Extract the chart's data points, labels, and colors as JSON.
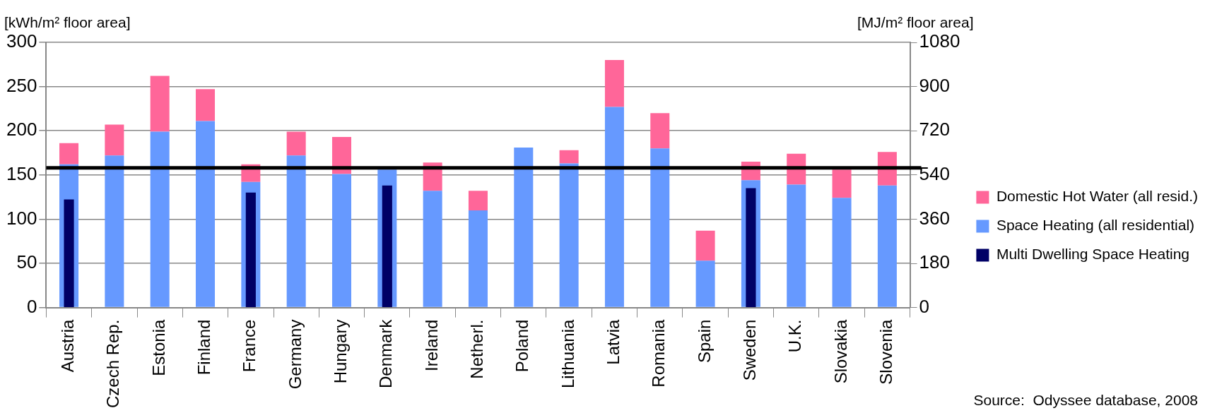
{
  "chart_data": {
    "type": "bar",
    "stacked": true,
    "categories": [
      "Austria",
      "Czech Rep.",
      "Estonia",
      "Finland",
      "France",
      "Germany",
      "Hungary",
      "Denmark",
      "Ireland",
      "Netherl.",
      "Poland",
      "Lithuania",
      "Latvia",
      "Romania",
      "Spain",
      "Sweden",
      "U.K.",
      "Slovakia",
      "Slovenia"
    ],
    "series": [
      {
        "name": "Space Heating (all residential)",
        "color": "#6699ff",
        "values": [
          162,
          172,
          199,
          211,
          142,
          172,
          151,
          156,
          132,
          110,
          181,
          163,
          227,
          180,
          53,
          144,
          139,
          124,
          138
        ]
      },
      {
        "name": "Domestic Hot Water (all resid.)",
        "color": "#ff6699",
        "values": [
          24,
          35,
          63,
          36,
          20,
          27,
          42,
          null,
          32,
          22,
          null,
          15,
          53,
          40,
          34,
          21,
          35,
          32,
          38
        ]
      },
      {
        "name": "Multi Dwelling Space Heating",
        "color": "#000066",
        "axis": "y2",
        "values": [
          440,
          null,
          null,
          null,
          468,
          null,
          null,
          497,
          null,
          null,
          null,
          null,
          null,
          null,
          null,
          486,
          null,
          null,
          null
        ]
      }
    ],
    "ylabel": "[kWh/m² floor area]",
    "y2label": "[MJ/m² floor area]",
    "ylim": [
      0,
      300
    ],
    "yticks": [
      0,
      50,
      100,
      150,
      200,
      250,
      300
    ],
    "y2lim": [
      0,
      1080
    ],
    "y2ticks": [
      0,
      180,
      360,
      540,
      720,
      900,
      1080
    ],
    "grid": "y",
    "legend": "right",
    "ref_lines": [
      {
        "axis": "y",
        "value": 158,
        "color": "#000000"
      }
    ],
    "annotations": [
      "Source:  Odyssee database, 2008"
    ]
  }
}
